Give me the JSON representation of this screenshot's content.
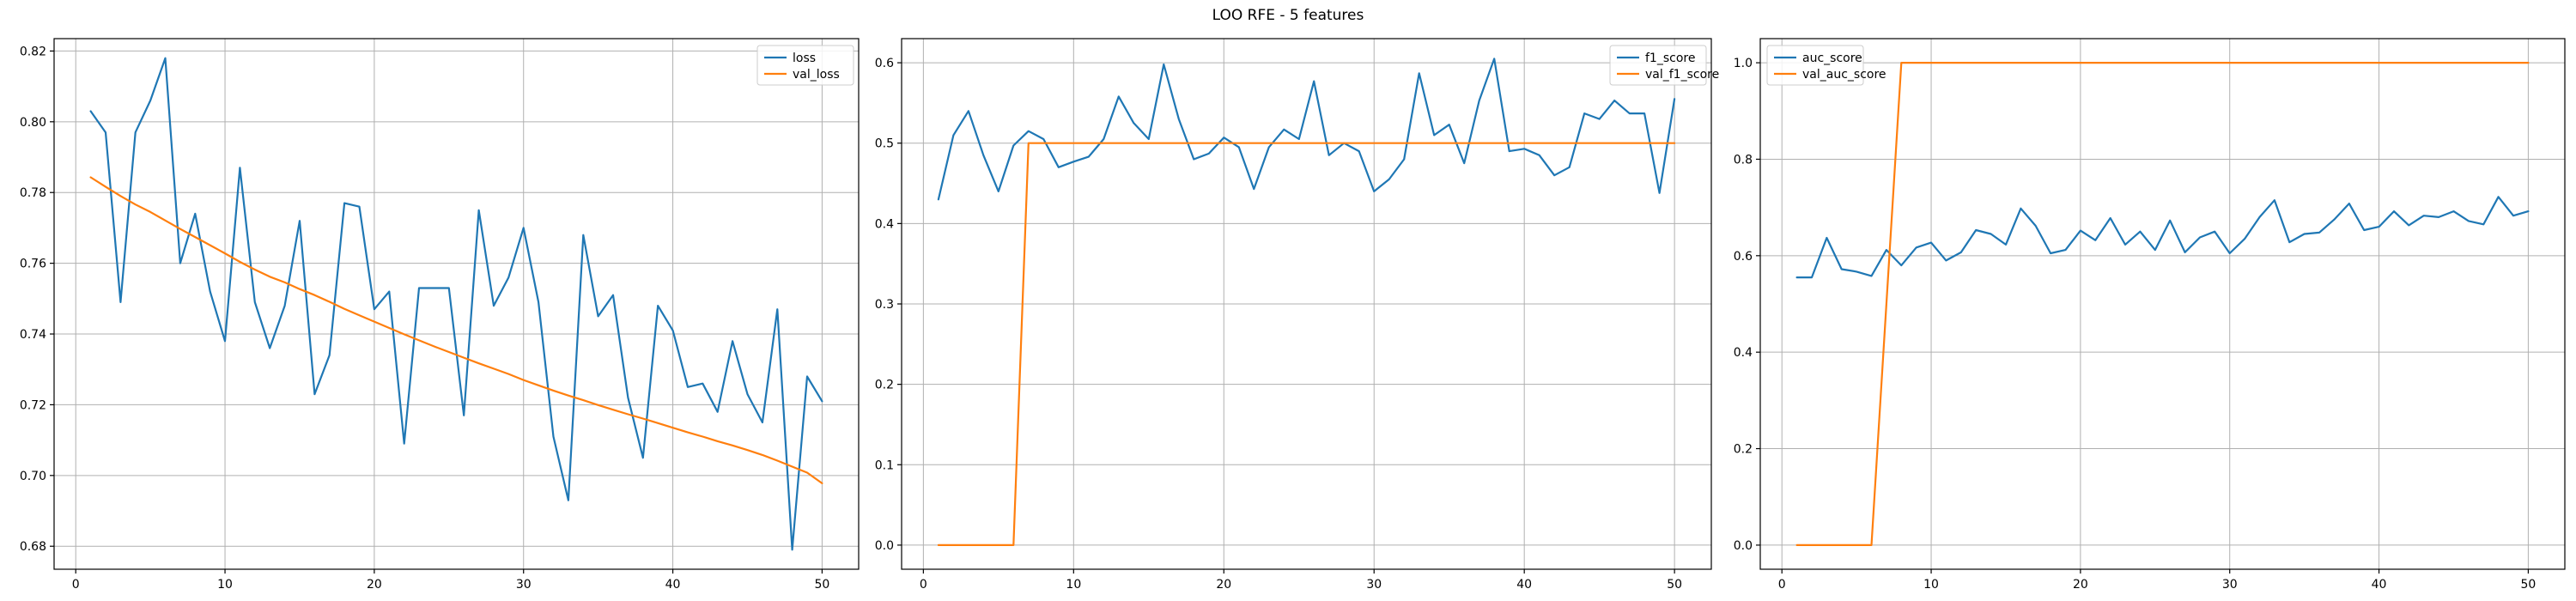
{
  "figure": {
    "title": "LOO RFE - 5 features"
  },
  "colors": {
    "train": "#1f77b4",
    "val": "#ff7f0e",
    "grid": "#b0b0b0",
    "axis": "#000000"
  },
  "chart_data": [
    {
      "type": "line",
      "title": "",
      "xlabel": "",
      "ylabel": "",
      "xlim": [
        -1.45,
        52.45
      ],
      "ylim": [
        0.6735,
        0.8235
      ],
      "xticks": [
        0,
        10,
        20,
        30,
        40,
        50
      ],
      "xtick_labels": [
        "0",
        "10",
        "20",
        "30",
        "40",
        "50"
      ],
      "yticks": [
        0.68,
        0.7,
        0.72,
        0.74,
        0.76,
        0.78,
        0.8,
        0.82
      ],
      "ytick_labels": [
        "0.68",
        "0.70",
        "0.72",
        "0.74",
        "0.76",
        "0.78",
        "0.80",
        "0.82"
      ],
      "grid": true,
      "legend_position": "top-right",
      "series": [
        {
          "name": "loss",
          "color": "#1f77b4",
          "x": [
            1,
            2,
            3,
            4,
            5,
            6,
            7,
            8,
            9,
            10,
            11,
            12,
            13,
            14,
            15,
            16,
            17,
            18,
            19,
            20,
            21,
            22,
            23,
            24,
            25,
            26,
            27,
            28,
            29,
            30,
            31,
            32,
            33,
            34,
            35,
            36,
            37,
            38,
            39,
            40,
            41,
            42,
            43,
            44,
            45,
            46,
            47,
            48,
            49,
            50
          ],
          "y": [
            0.803,
            0.797,
            0.749,
            0.797,
            0.806,
            0.818,
            0.76,
            0.774,
            0.752,
            0.738,
            0.787,
            0.749,
            0.736,
            0.748,
            0.772,
            0.723,
            0.734,
            0.777,
            0.776,
            0.747,
            0.752,
            0.709,
            0.753,
            0.753,
            0.753,
            0.717,
            0.775,
            0.748,
            0.756,
            0.77,
            0.749,
            0.711,
            0.693,
            0.768,
            0.745,
            0.751,
            0.722,
            0.705,
            0.748,
            0.741,
            0.725,
            0.726,
            0.718,
            0.738,
            0.723,
            0.715,
            0.747,
            0.679,
            0.728,
            0.721
          ]
        },
        {
          "name": "val_loss",
          "color": "#ff7f0e",
          "x": [
            1,
            2,
            3,
            4,
            5,
            6,
            7,
            8,
            9,
            10,
            11,
            12,
            13,
            14,
            15,
            16,
            17,
            18,
            19,
            20,
            21,
            22,
            23,
            24,
            25,
            26,
            27,
            28,
            29,
            30,
            31,
            32,
            33,
            34,
            35,
            36,
            37,
            38,
            39,
            40,
            41,
            42,
            43,
            44,
            45,
            46,
            47,
            48,
            49,
            50
          ],
          "y": [
            0.7843,
            0.7816,
            0.779,
            0.7766,
            0.7745,
            0.7721,
            0.7697,
            0.7674,
            0.7651,
            0.7628,
            0.7604,
            0.7582,
            0.7562,
            0.7546,
            0.7527,
            0.751,
            0.7491,
            0.7471,
            0.7453,
            0.7435,
            0.7417,
            0.7399,
            0.7382,
            0.7365,
            0.7349,
            0.7333,
            0.7317,
            0.7302,
            0.7287,
            0.727,
            0.7255,
            0.724,
            0.7226,
            0.7213,
            0.7199,
            0.7186,
            0.7173,
            0.7161,
            0.7148,
            0.7135,
            0.7122,
            0.711,
            0.7097,
            0.7085,
            0.7072,
            0.7058,
            0.7042,
            0.7025,
            0.7008,
            0.6978
          ]
        }
      ]
    },
    {
      "type": "line",
      "title": "",
      "xlabel": "",
      "ylabel": "",
      "xlim": [
        -1.45,
        52.45
      ],
      "ylim": [
        -0.03,
        0.63
      ],
      "xticks": [
        0,
        10,
        20,
        30,
        40,
        50
      ],
      "xtick_labels": [
        "0",
        "10",
        "20",
        "30",
        "40",
        "50"
      ],
      "yticks": [
        0.0,
        0.1,
        0.2,
        0.3,
        0.4,
        0.5,
        0.6
      ],
      "ytick_labels": [
        "0.0",
        "0.1",
        "0.2",
        "0.3",
        "0.4",
        "0.5",
        "0.6"
      ],
      "grid": true,
      "legend_position": "top-right",
      "series": [
        {
          "name": "f1_score",
          "color": "#1f77b4",
          "x": [
            1,
            2,
            3,
            4,
            5,
            6,
            7,
            8,
            9,
            10,
            11,
            12,
            13,
            14,
            15,
            16,
            17,
            18,
            19,
            20,
            21,
            22,
            23,
            24,
            25,
            26,
            27,
            28,
            29,
            30,
            31,
            32,
            33,
            34,
            35,
            36,
            37,
            38,
            39,
            40,
            41,
            42,
            43,
            44,
            45,
            46,
            47,
            48,
            49,
            50
          ],
          "y": [
            0.43,
            0.51,
            0.54,
            0.485,
            0.44,
            0.497,
            0.515,
            0.505,
            0.47,
            0.477,
            0.483,
            0.505,
            0.558,
            0.525,
            0.505,
            0.598,
            0.53,
            0.48,
            0.487,
            0.507,
            0.495,
            0.443,
            0.495,
            0.517,
            0.505,
            0.577,
            0.485,
            0.5,
            0.49,
            0.44,
            0.455,
            0.48,
            0.587,
            0.51,
            0.523,
            0.475,
            0.553,
            0.605,
            0.49,
            0.493,
            0.485,
            0.46,
            0.47,
            0.537,
            0.53,
            0.553,
            0.537,
            0.537,
            0.438,
            0.555
          ]
        },
        {
          "name": "val_f1_score",
          "color": "#ff7f0e",
          "x": [
            1,
            2,
            3,
            4,
            5,
            6,
            7,
            8,
            9,
            10,
            11,
            12,
            13,
            14,
            15,
            16,
            17,
            18,
            19,
            20,
            21,
            22,
            23,
            24,
            25,
            26,
            27,
            28,
            29,
            30,
            31,
            32,
            33,
            34,
            35,
            36,
            37,
            38,
            39,
            40,
            41,
            42,
            43,
            44,
            45,
            46,
            47,
            48,
            49,
            50
          ],
          "y": [
            0,
            0,
            0,
            0,
            0,
            0,
            0.5,
            0.5,
            0.5,
            0.5,
            0.5,
            0.5,
            0.5,
            0.5,
            0.5,
            0.5,
            0.5,
            0.5,
            0.5,
            0.5,
            0.5,
            0.5,
            0.5,
            0.5,
            0.5,
            0.5,
            0.5,
            0.5,
            0.5,
            0.5,
            0.5,
            0.5,
            0.5,
            0.5,
            0.5,
            0.5,
            0.5,
            0.5,
            0.5,
            0.5,
            0.5,
            0.5,
            0.5,
            0.5,
            0.5,
            0.5,
            0.5,
            0.5,
            0.5,
            0.5
          ]
        }
      ]
    },
    {
      "type": "line",
      "title": "",
      "xlabel": "",
      "ylabel": "",
      "xlim": [
        -1.45,
        52.45
      ],
      "ylim": [
        -0.05,
        1.05
      ],
      "xticks": [
        0,
        10,
        20,
        30,
        40,
        50
      ],
      "xtick_labels": [
        "0",
        "10",
        "20",
        "30",
        "40",
        "50"
      ],
      "yticks": [
        0.0,
        0.2,
        0.4,
        0.6,
        0.8,
        1.0
      ],
      "ytick_labels": [
        "0.0",
        "0.2",
        "0.4",
        "0.6",
        "0.8",
        "1.0"
      ],
      "grid": true,
      "legend_position": "top-left",
      "series": [
        {
          "name": "auc_score",
          "color": "#1f77b4",
          "x": [
            1,
            2,
            3,
            4,
            5,
            6,
            7,
            8,
            9,
            10,
            11,
            12,
            13,
            14,
            15,
            16,
            17,
            18,
            19,
            20,
            21,
            22,
            23,
            24,
            25,
            26,
            27,
            28,
            29,
            30,
            31,
            32,
            33,
            34,
            35,
            36,
            37,
            38,
            39,
            40,
            41,
            42,
            43,
            44,
            45,
            46,
            47,
            48,
            49,
            50
          ],
          "y": [
            0.555,
            0.555,
            0.637,
            0.572,
            0.567,
            0.558,
            0.612,
            0.58,
            0.617,
            0.627,
            0.59,
            0.607,
            0.653,
            0.645,
            0.623,
            0.698,
            0.662,
            0.605,
            0.612,
            0.652,
            0.632,
            0.678,
            0.623,
            0.65,
            0.612,
            0.673,
            0.607,
            0.638,
            0.65,
            0.605,
            0.635,
            0.68,
            0.715,
            0.628,
            0.645,
            0.648,
            0.675,
            0.708,
            0.653,
            0.66,
            0.692,
            0.663,
            0.683,
            0.68,
            0.692,
            0.672,
            0.665,
            0.722,
            0.683,
            0.692
          ]
        },
        {
          "name": "val_auc_score",
          "color": "#ff7f0e",
          "x": [
            1,
            2,
            3,
            4,
            5,
            6,
            7,
            8,
            9,
            10,
            11,
            12,
            13,
            14,
            15,
            16,
            17,
            18,
            19,
            20,
            21,
            22,
            23,
            24,
            25,
            26,
            27,
            28,
            29,
            30,
            31,
            32,
            33,
            34,
            35,
            36,
            37,
            38,
            39,
            40,
            41,
            42,
            43,
            44,
            45,
            46,
            47,
            48,
            49,
            50
          ],
          "y": [
            0,
            0,
            0,
            0,
            0,
            0,
            0.5,
            1,
            1,
            1,
            1,
            1,
            1,
            1,
            1,
            1,
            1,
            1,
            1,
            1,
            1,
            1,
            1,
            1,
            1,
            1,
            1,
            1,
            1,
            1,
            1,
            1,
            1,
            1,
            1,
            1,
            1,
            1,
            1,
            1,
            1,
            1,
            1,
            1,
            1,
            1,
            1,
            1,
            1,
            1
          ]
        }
      ]
    }
  ]
}
